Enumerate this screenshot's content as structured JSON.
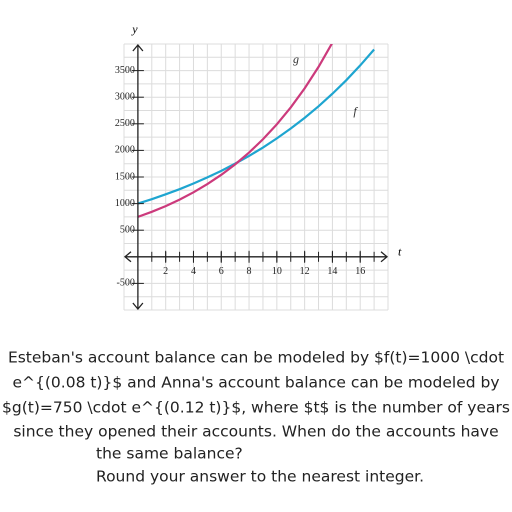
{
  "chart_data": {
    "type": "line",
    "x_label": "t",
    "y_label": "y",
    "x": [
      0,
      1,
      2,
      3,
      4,
      5,
      6,
      7,
      8,
      9,
      10,
      11,
      12,
      13,
      14,
      15,
      16,
      17
    ],
    "series": [
      {
        "name": "f",
        "color": "#1ea5d0",
        "values": [
          1000,
          1083,
          1174,
          1271,
          1377,
          1492,
          1616,
          1751,
          1896,
          2054,
          2226,
          2411,
          2612,
          2829,
          3065,
          3320,
          3597,
          3896
        ]
      },
      {
        "name": "g",
        "color": "#cc3a7c",
        "values": [
          750,
          846,
          953,
          1075,
          1212,
          1367,
          1541,
          1738,
          1959,
          2209,
          2490,
          2808,
          3166,
          3570,
          4025,
          null,
          null,
          null
        ]
      }
    ],
    "xlim": [
      -1,
      18
    ],
    "ylim": [
      -1000,
      4000
    ],
    "xticks": [
      2,
      4,
      6,
      8,
      10,
      12,
      14,
      16
    ],
    "yticks": [
      -500,
      500,
      1000,
      1500,
      2000,
      2500,
      3000,
      3500
    ],
    "xgrid": [
      -1,
      0,
      1,
      2,
      3,
      4,
      5,
      6,
      7,
      8,
      9,
      10,
      11,
      12,
      13,
      14,
      15,
      16,
      17,
      18
    ],
    "ygrid": [
      -1000,
      -750,
      -500,
      -250,
      0,
      250,
      500,
      750,
      1000,
      1250,
      1500,
      1750,
      2000,
      2250,
      2500,
      2750,
      3000,
      3250,
      3500,
      3750,
      4000
    ],
    "grid": true
  },
  "question": {
    "lines": [
      "Esteban's account balance can be modeled by $f(t)=1000 \\cdot",
      "e^{(0.08 t)}$ and Anna's account balance can be modeled by",
      "$g(t)=750 \\cdot e^{(0.12 t)}$, where $t$ is the number of years",
      "since they opened their accounts.  When do the accounts have",
      "the same balance?",
      "Round your answer to the nearest integer."
    ]
  }
}
